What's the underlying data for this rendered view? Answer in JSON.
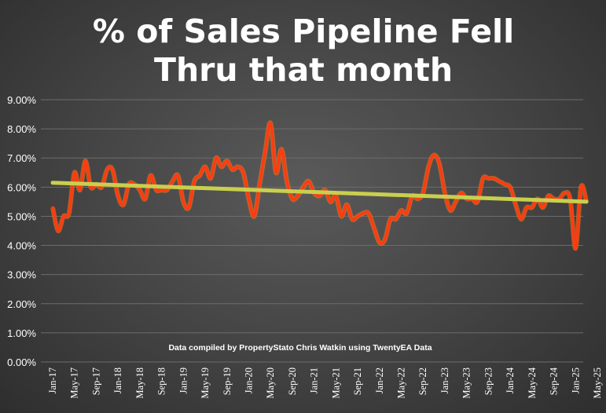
{
  "chart_data": {
    "type": "line",
    "title_lines": [
      "% of Sales Pipeline Fell",
      "Thru that month"
    ],
    "annotation": "Data compiled by PropertyStato Chris Watkin using TwentyEA Data",
    "ylim": [
      0,
      9
    ],
    "yticks": [
      0,
      1,
      2,
      3,
      4,
      5,
      6,
      7,
      8,
      9
    ],
    "ytick_labels": [
      "0.00%",
      "1.00%",
      "2.00%",
      "3.00%",
      "4.00%",
      "5.00%",
      "6.00%",
      "7.00%",
      "8.00%",
      "9.00%"
    ],
    "xtick_labels": [
      "Jan-17",
      "May-17",
      "Sep-17",
      "Jan-18",
      "May-18",
      "Sep-18",
      "Jan-19",
      "May-19",
      "Sep-19",
      "Jan-20",
      "May-20",
      "Sep-20",
      "Jan-21",
      "May-21",
      "Sep-21",
      "Jan-22",
      "May-22",
      "Sep-22",
      "Jan-23",
      "May-23",
      "Sep-23",
      "Jan-24",
      "May-24",
      "Sep-24",
      "Jan-25",
      "May-25"
    ],
    "grid": true,
    "colors": {
      "series": "#ff3b10",
      "trend": "#c9cf4e",
      "text": "#ffffff",
      "grid": "#6c6c6c"
    },
    "series": [
      {
        "values": [
          5.3,
          4.5,
          5.0,
          5.1,
          6.5,
          5.9,
          6.9,
          6.0,
          6.1,
          6.0,
          6.6,
          6.6,
          5.7,
          5.4,
          6.1,
          6.1,
          5.9,
          5.6,
          6.4,
          5.9,
          5.9,
          5.9,
          6.2,
          6.4,
          5.5,
          5.3,
          6.2,
          6.4,
          6.7,
          6.3,
          7.0,
          6.7,
          6.9,
          6.6,
          6.7,
          6.5,
          5.6,
          5.0,
          6.1,
          7.2,
          8.2,
          6.5,
          7.3,
          6.2,
          5.6,
          5.7,
          6.0,
          6.2,
          5.8,
          5.7,
          5.9,
          5.5,
          5.7,
          5.0,
          5.4,
          4.9,
          5.0,
          5.1,
          5.1,
          4.6,
          4.1,
          4.2,
          4.9,
          4.9,
          5.2,
          5.1,
          5.7,
          5.6,
          5.8,
          6.7,
          7.1,
          6.8,
          5.8,
          5.2,
          5.5,
          5.8,
          5.6,
          5.6,
          5.5,
          6.3,
          6.3,
          6.3,
          6.2,
          6.1,
          6.0,
          5.4,
          4.9,
          5.3,
          5.3,
          5.6,
          5.3,
          5.7,
          5.6,
          5.6,
          5.8,
          5.6,
          3.9,
          6.0,
          5.5
        ]
      }
    ],
    "trendline": {
      "start": 6.15,
      "end": 5.5
    }
  }
}
